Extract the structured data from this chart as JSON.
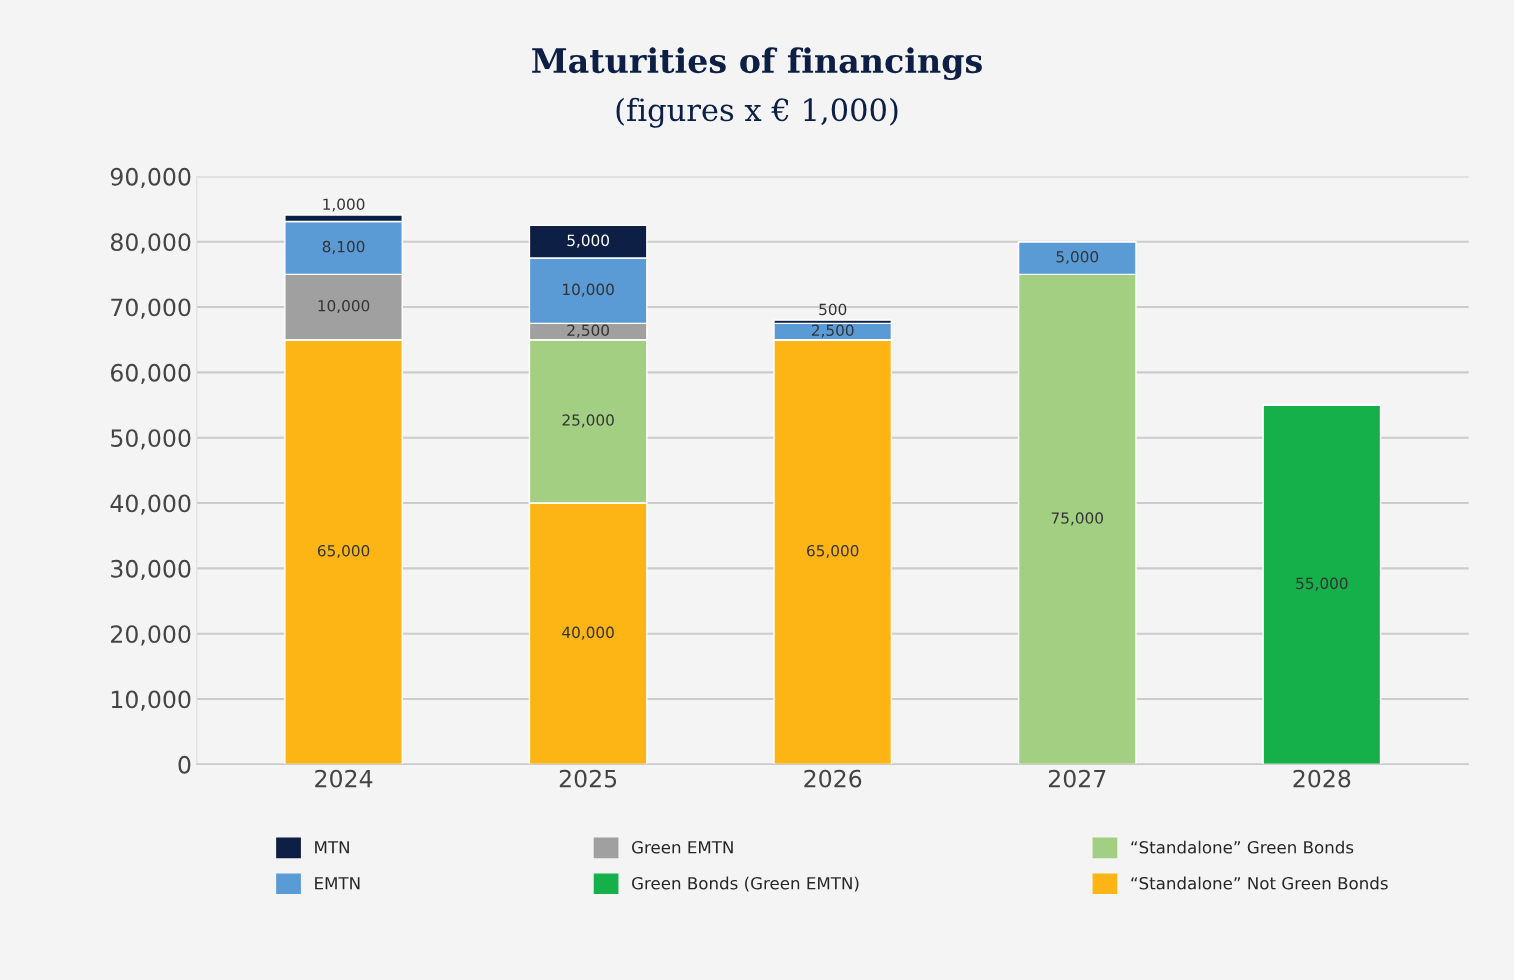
{
  "chart_data": {
    "type": "bar",
    "title": "Maturities of financings",
    "subtitle": "(figures x € 1,000)",
    "categories": [
      "2024",
      "2025",
      "2026",
      "2027",
      "2028"
    ],
    "stacked": true,
    "series": [
      {
        "name": "“Standalone” Not Green Bonds",
        "color": "#fdb515",
        "values": [
          65000,
          40000,
          65000,
          null,
          null
        ],
        "value_labels": [
          "65,000",
          "40,000",
          "65,000",
          null,
          null
        ]
      },
      {
        "name": "“Standalone” Green Bonds",
        "color": "#a3cf82",
        "values": [
          null,
          25000,
          null,
          75000,
          null
        ],
        "value_labels": [
          null,
          "25,000",
          null,
          "75,000",
          null
        ]
      },
      {
        "name": "Green Bonds (Green EMTN)",
        "color": "#16b04a",
        "values": [
          null,
          null,
          null,
          null,
          55000
        ],
        "value_labels": [
          null,
          null,
          null,
          null,
          "55,000"
        ]
      },
      {
        "name": "Green EMTN",
        "color": "#a0a0a0",
        "values": [
          10000,
          2500,
          null,
          null,
          null
        ],
        "value_labels": [
          "10,000",
          "2,500",
          null,
          null,
          null
        ]
      },
      {
        "name": "EMTN",
        "color": "#5b9bd5",
        "values": [
          8100,
          10000,
          2500,
          5000,
          null
        ],
        "value_labels": [
          "8,100",
          "10,000",
          "2,500",
          "5,000",
          null
        ]
      },
      {
        "name": "MTN",
        "color": "#0d1f45",
        "values": [
          1000,
          5000,
          500,
          null,
          null
        ],
        "value_labels": [
          "1,000",
          "5,000",
          "500",
          null,
          null
        ]
      }
    ],
    "ylim": [
      0,
      90000
    ],
    "yticks": [
      0,
      {
        "value": 10000,
        "label": "10,000"
      },
      {
        "value": 20000,
        "label": "20,000"
      },
      {
        "value": 30000,
        "label": "30,000"
      },
      {
        "value": 40000,
        "label": "40,000"
      },
      {
        "value": 50000,
        "label": "50,000"
      },
      {
        "value": 60000,
        "label": "60,000"
      },
      {
        "value": 70000,
        "label": "70,000"
      },
      {
        "value": 80000,
        "label": "80,000"
      },
      {
        "value": 90000,
        "label": "90,000"
      }
    ],
    "grid": "y",
    "legend": "bottom"
  }
}
